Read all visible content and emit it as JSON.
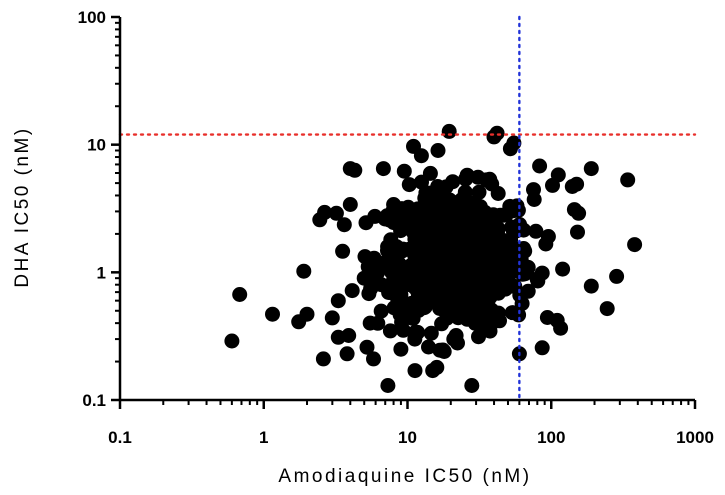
{
  "chart_data": {
    "type": "scatter",
    "xlabel": "Amodiaquine IC50 (nM)",
    "ylabel": "DHA IC50 (nM)",
    "x_scale": "log",
    "y_scale": "log",
    "xlim": [
      0.1,
      1000
    ],
    "ylim": [
      0.1,
      100
    ],
    "x_ticks": [
      "0.1",
      "1",
      "10",
      "100",
      "1000"
    ],
    "y_ticks": [
      "0.1",
      "1",
      "10",
      "100"
    ],
    "grid": false,
    "reference_lines": [
      {
        "orientation": "horizontal",
        "value": 12,
        "color": "#e8302c",
        "style": "dotted"
      },
      {
        "orientation": "vertical",
        "value": 60,
        "color": "#2233d8",
        "style": "dotted"
      }
    ],
    "marker_color": "#000000",
    "points": [
      [
        0.6,
        0.29
      ],
      [
        0.68,
        0.67
      ],
      [
        1.15,
        0.47
      ],
      [
        1.75,
        0.41
      ],
      [
        1.9,
        1.02
      ],
      [
        2.0,
        0.47
      ],
      [
        2.6,
        0.21
      ],
      [
        2.65,
        2.95
      ],
      [
        3.3,
        0.31
      ],
      [
        3.8,
        0.23
      ],
      [
        3.9,
        0.32
      ],
      [
        4.0,
        6.5
      ],
      [
        4.3,
        6.3
      ],
      [
        7.3,
        0.13
      ],
      [
        9.0,
        0.25
      ],
      [
        11.0,
        9.7
      ],
      [
        19.5,
        12.7
      ],
      [
        28.0,
        0.13
      ],
      [
        40.0,
        11.5
      ],
      [
        60.0,
        0.23
      ],
      [
        42.0,
        12.3
      ],
      [
        83.0,
        6.8
      ],
      [
        102.0,
        4.8
      ],
      [
        112.0,
        5.8
      ],
      [
        140.0,
        4.7
      ],
      [
        150.0,
        4.9
      ],
      [
        145.0,
        3.1
      ],
      [
        155.0,
        2.9
      ],
      [
        190.0,
        6.5
      ],
      [
        340.0,
        5.3
      ],
      [
        380.0,
        1.65
      ],
      [
        285.0,
        0.93
      ],
      [
        245.0,
        0.52
      ],
      [
        190.0,
        0.78
      ],
      [
        110.0,
        0.42
      ],
      [
        4.0,
        3.4
      ],
      [
        3.2,
        2.9
      ],
      [
        5.8,
        0.21
      ],
      [
        12.5,
        8.2
      ],
      [
        9.5,
        6.2
      ],
      [
        18.0,
        0.24
      ],
      [
        16.0,
        0.18
      ],
      [
        14.0,
        0.26
      ],
      [
        52.0,
        9.3
      ],
      [
        55.0,
        10.3
      ],
      [
        21.0,
        0.3
      ],
      [
        6.8,
        6.5
      ],
      [
        35.0,
        0.5
      ],
      [
        3.3,
        0.6
      ],
      [
        3.0,
        0.44
      ],
      [
        5.5,
        0.4
      ],
      [
        5.0,
        0.9
      ],
      [
        7.5,
        1.35
      ],
      [
        8.0,
        3.4
      ]
    ]
  }
}
